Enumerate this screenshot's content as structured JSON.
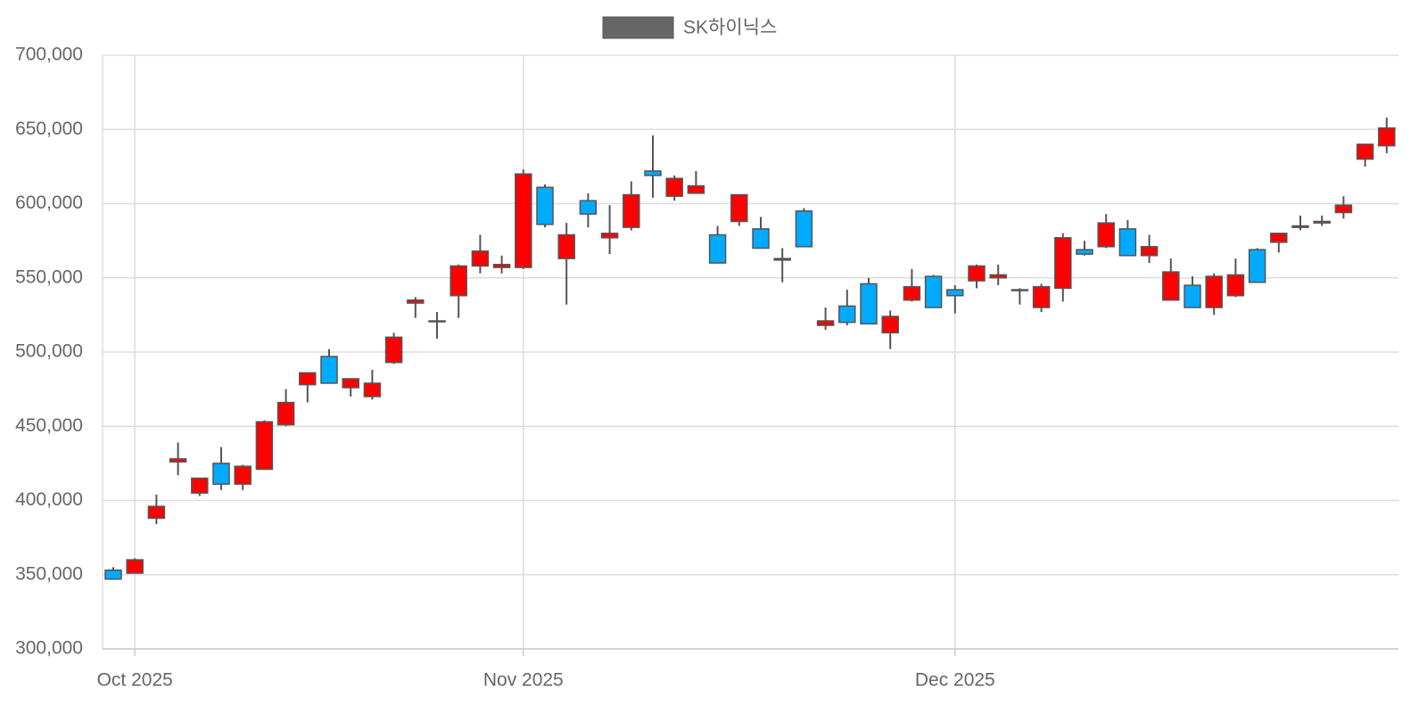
{
  "chart_data": {
    "type": "candlestick",
    "categories": [
      null,
      "Oct 2025",
      null,
      null,
      null,
      null,
      null,
      null,
      null,
      null,
      null,
      null,
      null,
      null,
      null,
      null,
      null,
      null,
      null,
      "Nov 2025",
      null,
      null,
      null,
      null,
      null,
      null,
      null,
      null,
      null,
      null,
      null,
      null,
      null,
      null,
      null,
      null,
      null,
      null,
      null,
      "Dec 2025",
      null,
      null,
      null,
      null,
      null,
      null,
      null,
      null,
      null,
      null,
      null,
      null,
      null,
      null,
      null,
      null,
      null,
      null,
      null,
      null
    ],
    "series": [
      {
        "name": "SK하이닉스",
        "color": "#666666",
        "open": [
          353000,
          351000,
          388000,
          426000,
          405000,
          425000,
          411000,
          421000,
          451000,
          478000,
          497000,
          476000,
          470000,
          493000,
          533000,
          521000,
          538000,
          558000,
          557000,
          557000,
          611000,
          563000,
          602000,
          577000,
          584000,
          622000,
          605000,
          607000,
          579000,
          588000,
          583000,
          562000,
          595000,
          518000,
          531000,
          546000,
          513000,
          535000,
          551000,
          542000,
          548000,
          550000,
          542000,
          530000,
          543000,
          569000,
          571000,
          583000,
          565000,
          535000,
          545000,
          530000,
          538000,
          569000,
          574000,
          584000,
          587000,
          594000,
          630000,
          639000
        ],
        "high": [
          355000,
          361000,
          404000,
          439000,
          415000,
          436000,
          424000,
          454000,
          475000,
          486000,
          502000,
          482000,
          488000,
          513000,
          537000,
          527000,
          559000,
          579000,
          565000,
          623000,
          613000,
          587000,
          607000,
          599000,
          615000,
          646000,
          619000,
          622000,
          585000,
          606000,
          591000,
          570000,
          597000,
          530000,
          542000,
          550000,
          528000,
          556000,
          552000,
          545000,
          559000,
          559000,
          543000,
          546000,
          580000,
          575000,
          593000,
          589000,
          579000,
          563000,
          551000,
          553000,
          563000,
          570000,
          580000,
          592000,
          592000,
          605000,
          640000,
          658000
        ],
        "low": [
          347000,
          351000,
          384000,
          417000,
          403000,
          407000,
          407000,
          421000,
          450000,
          466000,
          479000,
          470000,
          468000,
          492000,
          523000,
          509000,
          523000,
          553000,
          553000,
          556000,
          584000,
          532000,
          584000,
          566000,
          582000,
          604000,
          602000,
          607000,
          560000,
          585000,
          570000,
          547000,
          571000,
          515000,
          518000,
          519000,
          502000,
          534000,
          530000,
          526000,
          543000,
          545000,
          532000,
          527000,
          534000,
          565000,
          570000,
          565000,
          560000,
          535000,
          530000,
          525000,
          537000,
          547000,
          567000,
          582000,
          585000,
          590000,
          625000,
          634000
        ],
        "close": [
          347000,
          360000,
          396000,
          428000,
          415000,
          411000,
          423000,
          453000,
          466000,
          486000,
          479000,
          482000,
          479000,
          510000,
          535000,
          521000,
          558000,
          568000,
          559000,
          620000,
          586000,
          579000,
          593000,
          580000,
          606000,
          619000,
          617000,
          612000,
          560000,
          606000,
          570000,
          563000,
          571000,
          521000,
          520000,
          519000,
          524000,
          544000,
          530000,
          538000,
          558000,
          552000,
          542000,
          544000,
          577000,
          566000,
          587000,
          565000,
          571000,
          554000,
          530000,
          551000,
          552000,
          547000,
          580000,
          585000,
          588000,
          599000,
          640000,
          651000
        ]
      }
    ],
    "up_color": "#ff0000",
    "down_color": "#00aaff",
    "ylim": [
      300000,
      700000
    ],
    "yticks": [
      {
        "value": 300000,
        "label": "300,000"
      },
      {
        "value": 350000,
        "label": "350,000"
      },
      {
        "value": 400000,
        "label": "400,000"
      },
      {
        "value": 450000,
        "label": "450,000"
      },
      {
        "value": 500000,
        "label": "500,000"
      },
      {
        "value": 550000,
        "label": "550,000"
      },
      {
        "value": 600000,
        "label": "600,000"
      },
      {
        "value": 650000,
        "label": "650,000"
      },
      {
        "value": 700000,
        "label": "700,000"
      }
    ],
    "grid": true
  }
}
